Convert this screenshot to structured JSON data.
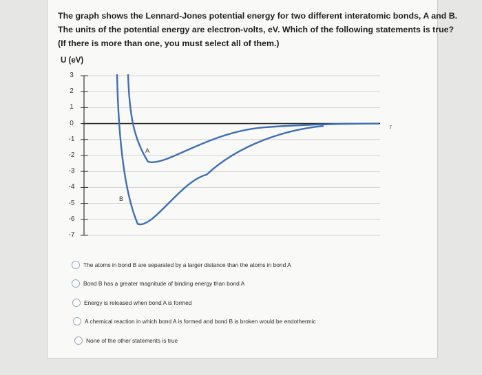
{
  "question": {
    "line1": "The graph shows the Lennard-Jones potential energy for two different interatomic bonds, A and B.",
    "line2": "The units of the potential energy are electron-volts, eV.  Which of the following statements is true?",
    "line3": "(If there is more than one, you must select all of them.)"
  },
  "chart_data": {
    "type": "line",
    "ylabel": "U (eV)",
    "xlabel": "r",
    "yticks": [
      "3",
      "2",
      "1",
      "0",
      "-1",
      "-2",
      "-3",
      "-4",
      "-5",
      "-6",
      "-7"
    ],
    "ylim": [
      -7,
      3
    ],
    "grid": true,
    "series": [
      {
        "name": "A",
        "min_energy": -2.3,
        "color": "#3d6fb4"
      },
      {
        "name": "B",
        "min_energy": -6.2,
        "color": "#3d6fb4"
      }
    ]
  },
  "options": [
    {
      "label": "The atoms in bond B are separated by a larger distance than the atoms in bond A"
    },
    {
      "label": "Bond B has a greater magnitude of binding energy than bond A"
    },
    {
      "label": "Energy is released when bond A is formed"
    },
    {
      "label": "A chemical reaction in which bond A is formed and bond B is broken would be endothermic"
    },
    {
      "label": "None of the other statements is true"
    }
  ]
}
